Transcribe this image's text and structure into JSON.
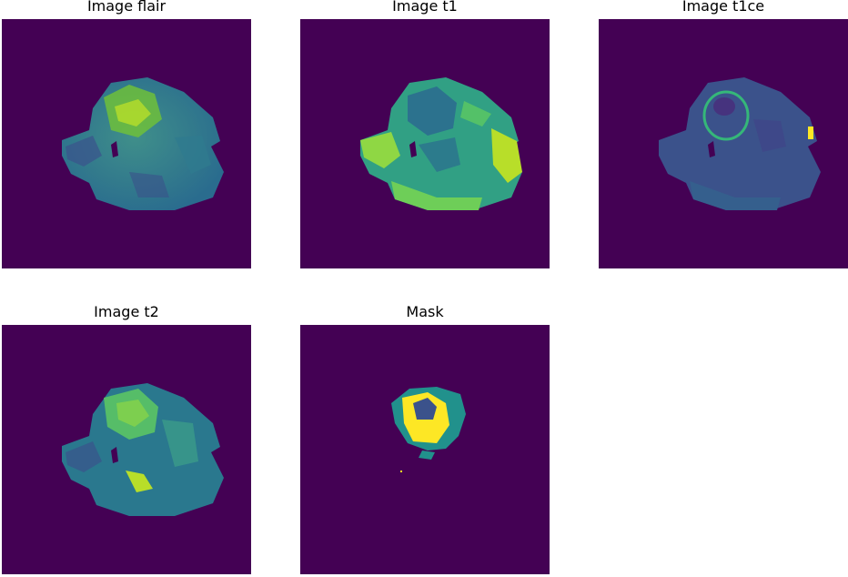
{
  "panels": [
    {
      "id": "flair",
      "title": "Image flair"
    },
    {
      "id": "t1",
      "title": "Image t1"
    },
    {
      "id": "t1ce",
      "title": "Image t1ce"
    },
    {
      "id": "t2",
      "title": "Image t2"
    },
    {
      "id": "mask",
      "title": "Mask"
    }
  ],
  "colors": {
    "background": "#440154",
    "viridis_dark": "#3b528b",
    "viridis_mid": "#21918c",
    "viridis_green": "#5ec962",
    "viridis_yellow": "#fde725"
  }
}
